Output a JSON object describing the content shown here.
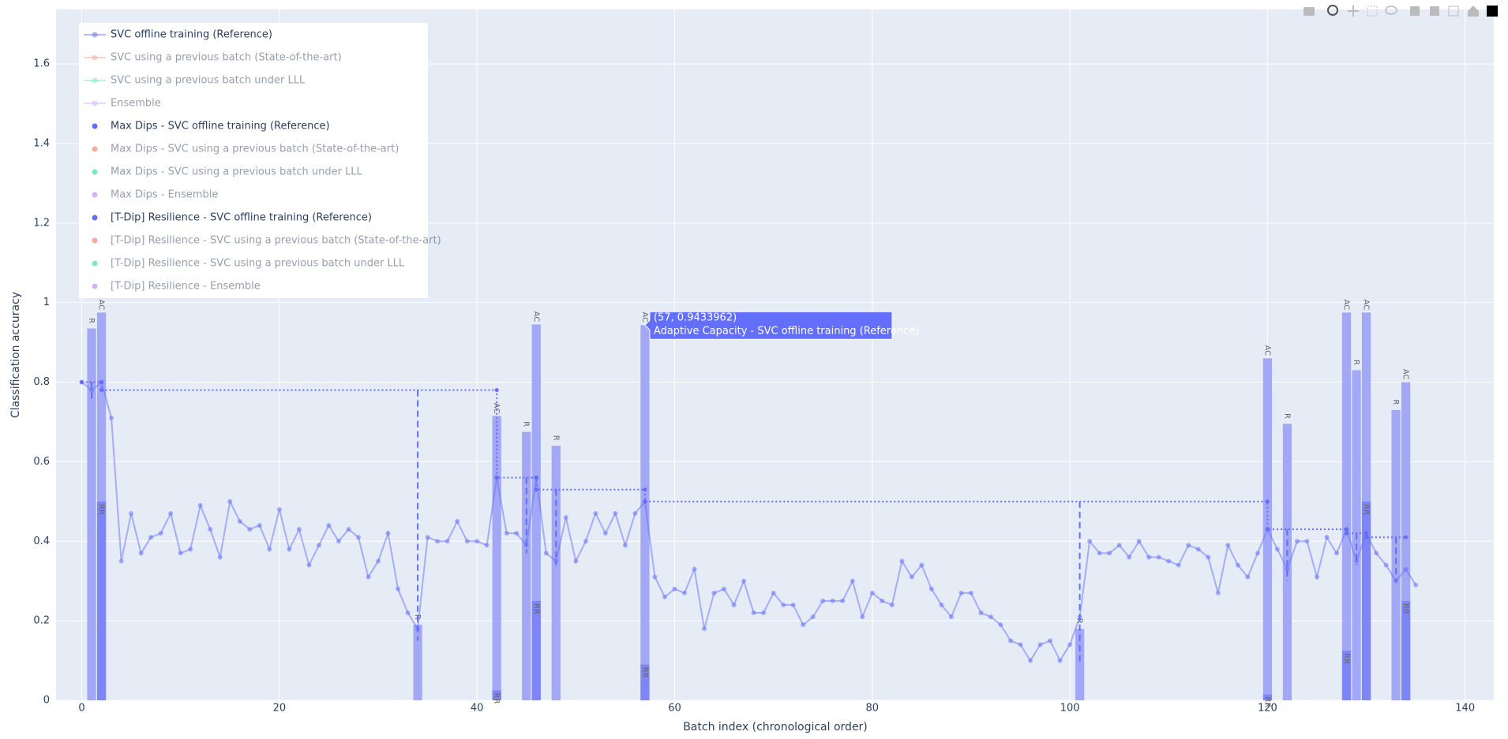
{
  "chart_data": {
    "type": "line",
    "xlabel": "Batch index (chronological order)",
    "ylabel": "Classification accuracy",
    "xlim": [
      -2.6,
      142.9
    ],
    "ylim": [
      0,
      1.737
    ],
    "xticks": [
      0,
      20,
      40,
      60,
      80,
      100,
      120,
      140
    ],
    "yticks": [
      0,
      0.2,
      0.4,
      0.6,
      0.8,
      1,
      1.2,
      1.4,
      1.6
    ],
    "grid": true,
    "series": [
      {
        "name": "SVC offline training (Reference)",
        "color": "#636efa",
        "mode": "lines+markers",
        "visible": true,
        "x": [
          0,
          1,
          2,
          3,
          4,
          5,
          6,
          7,
          8,
          9,
          10,
          11,
          12,
          13,
          14,
          15,
          16,
          17,
          18,
          19,
          20,
          21,
          22,
          23,
          24,
          25,
          26,
          27,
          28,
          29,
          30,
          31,
          32,
          33,
          34,
          35,
          36,
          37,
          38,
          39,
          40,
          41,
          42,
          43,
          44,
          45,
          46,
          47,
          48,
          49,
          50,
          51,
          52,
          53,
          54,
          55,
          56,
          57,
          58,
          59,
          60,
          61,
          62,
          63,
          64,
          65,
          66,
          67,
          68,
          69,
          70,
          71,
          72,
          73,
          74,
          75,
          76,
          77,
          78,
          79,
          80,
          81,
          82,
          83,
          84,
          85,
          86,
          87,
          88,
          89,
          90,
          91,
          92,
          93,
          94,
          95,
          96,
          97,
          98,
          99,
          100,
          101,
          102,
          103,
          104,
          105,
          106,
          107,
          108,
          109,
          110,
          111,
          112,
          113,
          114,
          115,
          116,
          117,
          118,
          119,
          120,
          121,
          122,
          123,
          124,
          125,
          126,
          127,
          128,
          129,
          130,
          131,
          132,
          133,
          134,
          135
        ],
        "values": [
          0.8,
          0.78,
          0.8,
          0.71,
          0.35,
          0.47,
          0.37,
          0.41,
          0.42,
          0.47,
          0.37,
          0.38,
          0.49,
          0.43,
          0.36,
          0.5,
          0.45,
          0.43,
          0.44,
          0.38,
          0.48,
          0.38,
          0.43,
          0.34,
          0.39,
          0.44,
          0.4,
          0.43,
          0.41,
          0.31,
          0.35,
          0.42,
          0.28,
          0.22,
          0.18,
          0.41,
          0.4,
          0.4,
          0.45,
          0.4,
          0.4,
          0.39,
          0.56,
          0.42,
          0.42,
          0.39,
          0.56,
          0.37,
          0.35,
          0.46,
          0.35,
          0.4,
          0.47,
          0.42,
          0.47,
          0.39,
          0.47,
          0.5,
          0.31,
          0.26,
          0.28,
          0.27,
          0.33,
          0.18,
          0.27,
          0.28,
          0.24,
          0.3,
          0.22,
          0.22,
          0.27,
          0.24,
          0.24,
          0.19,
          0.21,
          0.25,
          0.25,
          0.25,
          0.3,
          0.21,
          0.27,
          0.25,
          0.24,
          0.35,
          0.31,
          0.34,
          0.28,
          0.24,
          0.21,
          0.27,
          0.27,
          0.22,
          0.21,
          0.19,
          0.15,
          0.14,
          0.1,
          0.14,
          0.15,
          0.1,
          0.14,
          0.21,
          0.4,
          0.37,
          0.37,
          0.39,
          0.36,
          0.4,
          0.36,
          0.36,
          0.35,
          0.34,
          0.39,
          0.38,
          0.36,
          0.27,
          0.39,
          0.34,
          0.31,
          0.37,
          0.43,
          0.38,
          0.33,
          0.4,
          0.4,
          0.31,
          0.41,
          0.37,
          0.43,
          0.35,
          0.42,
          0.37,
          0.34,
          0.3,
          0.33,
          0.29
        ]
      },
      {
        "name": "SVC using a previous batch (State-of-the-art)",
        "color": "#EF553B",
        "mode": "lines+markers",
        "visible": "legendonly"
      },
      {
        "name": "SVC using a previous batch under LLL",
        "color": "#00cc96",
        "mode": "lines+markers",
        "visible": "legendonly"
      },
      {
        "name": "Ensemble",
        "color": "#ab63fa",
        "mode": "lines+markers",
        "visible": "legendonly"
      },
      {
        "name": "Max Dips - SVC offline training (Reference)",
        "color": "#636efa",
        "mode": "markers",
        "visible": true,
        "dash": "dot",
        "x": [
          0,
          2,
          2,
          42,
          42,
          46,
          46,
          57,
          57,
          120,
          120,
          128,
          128,
          130,
          130,
          134
        ],
        "values": [
          0.8,
          0.8,
          0.78,
          0.78,
          0.56,
          0.56,
          0.53,
          0.53,
          0.5,
          0.5,
          0.43,
          0.43,
          0.42,
          0.42,
          0.41,
          0.41
        ]
      },
      {
        "name": "Max Dips - SVC using a previous batch (State-of-the-art)",
        "color": "#EF553B",
        "mode": "markers",
        "visible": "legendonly"
      },
      {
        "name": "Max Dips - SVC using a previous batch under LLL",
        "color": "#00cc96",
        "mode": "markers",
        "visible": "legendonly"
      },
      {
        "name": "Max Dips - Ensemble",
        "color": "#ab63fa",
        "mode": "markers",
        "visible": "legendonly"
      },
      {
        "name": "[T-Dip] Resilience - SVC offline training (Reference)",
        "color": "#636efa",
        "mode": "markers",
        "visible": true,
        "dash": "dash",
        "x": [
          1,
          34,
          45,
          48,
          101,
          122,
          129,
          133
        ],
        "from": [
          0.8,
          0.78,
          0.56,
          0.53,
          0.5,
          0.43,
          0.42,
          0.41
        ],
        "values": [
          0.75,
          0.15,
          0.37,
          0.34,
          0.09,
          0.3,
          0.34,
          0.3
        ]
      },
      {
        "name": "[T-Dip] Resilience - SVC using a previous batch (State-of-the-art)",
        "color": "#EF553B",
        "mode": "markers",
        "visible": "legendonly"
      },
      {
        "name": "[T-Dip] Resilience - SVC using a previous batch under LLL",
        "color": "#00cc96",
        "mode": "markers",
        "visible": "legendonly"
      },
      {
        "name": "[T-Dip] Resilience - Ensemble",
        "color": "#ab63fa",
        "mode": "markers",
        "visible": "legendonly"
      }
    ],
    "bars": [
      {
        "label": "R",
        "color": "#a3a8f6",
        "x": [
          1,
          34,
          45,
          48,
          101,
          122,
          129,
          133
        ],
        "values": [
          0.935,
          0.19,
          0.675,
          0.64,
          0.18,
          0.695,
          0.83,
          0.73
        ]
      },
      {
        "label": "AC",
        "color": "#a3a8f6",
        "x": [
          2,
          42,
          46,
          57,
          120,
          128,
          130,
          134
        ],
        "values": [
          0.975,
          0.715,
          0.945,
          0.9433962,
          0.86,
          0.975,
          0.975,
          0.8
        ]
      },
      {
        "label": "RR",
        "color": "#7d85f7",
        "x": [
          2,
          42,
          46,
          57,
          120,
          128,
          130,
          134
        ],
        "values": [
          0.5,
          0.025,
          0.25,
          0.09,
          0.015,
          0.125,
          0.5,
          0.25
        ]
      }
    ],
    "hover": {
      "x": 57,
      "y": 0.9433962,
      "title": "(57, 0.9433962)",
      "text": "Adaptive Capacity - SVC offline training (Reference)"
    }
  }
}
